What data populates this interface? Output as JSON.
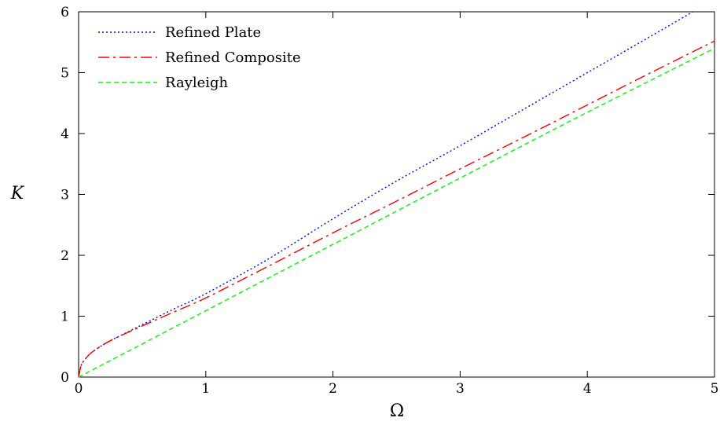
{
  "chart_data": {
    "type": "line",
    "title": "",
    "xlabel": "Ω",
    "ylabel": "K",
    "xlim": [
      0,
      5
    ],
    "ylim": [
      0,
      6
    ],
    "xticks": [
      0,
      1,
      2,
      3,
      4,
      5
    ],
    "yticks": [
      0,
      1,
      2,
      3,
      4,
      5,
      6
    ],
    "grid": false,
    "legend_position": "top-left",
    "series": [
      {
        "name": "Refined Plate",
        "color": "#0000ff",
        "dash": "dotted",
        "x": [
          0,
          0.02,
          0.05,
          0.1,
          0.2,
          0.3,
          0.5,
          0.75,
          1.0,
          1.5,
          2.0,
          2.5,
          3.0,
          3.5,
          4.0,
          4.5,
          4.83
        ],
        "y": [
          0,
          0.19,
          0.29,
          0.4,
          0.54,
          0.65,
          0.86,
          1.12,
          1.37,
          1.95,
          2.6,
          3.22,
          3.8,
          4.4,
          5.0,
          5.6,
          6.0
        ]
      },
      {
        "name": "Refined Composite",
        "color": "#ff0000",
        "dash": "dash-dot",
        "x": [
          0,
          0.02,
          0.05,
          0.1,
          0.2,
          0.3,
          0.5,
          0.75,
          1.0,
          1.5,
          2.0,
          2.5,
          3.0,
          3.5,
          4.0,
          4.5,
          5.0
        ],
        "y": [
          0,
          0.19,
          0.29,
          0.4,
          0.54,
          0.65,
          0.84,
          1.07,
          1.3,
          1.83,
          2.37,
          2.89,
          3.42,
          3.94,
          4.47,
          5.0,
          5.52
        ]
      },
      {
        "name": "Rayleigh",
        "color": "#00ff00",
        "dash": "dashed",
        "x": [
          0,
          1,
          2,
          3,
          4,
          5
        ],
        "y": [
          0,
          1.09,
          2.18,
          3.27,
          4.35,
          5.4
        ]
      }
    ]
  }
}
